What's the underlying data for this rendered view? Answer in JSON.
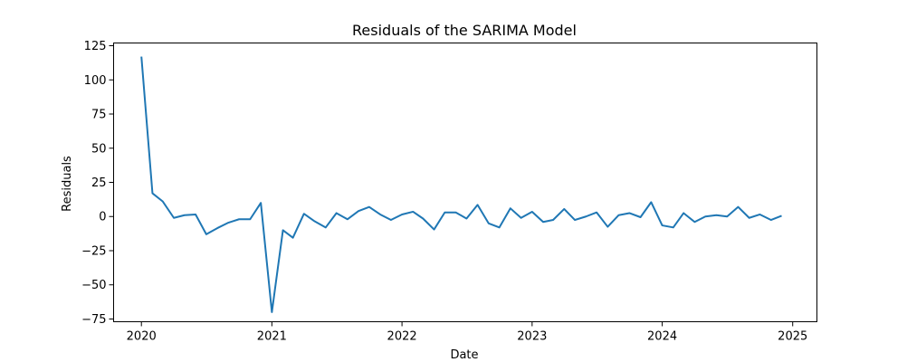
{
  "chart_data": {
    "type": "line",
    "title": "Residuals of the SARIMA Model",
    "xlabel": "Date",
    "ylabel": "Residuals",
    "xlim": [
      "2019-10-15",
      "2025-03-10"
    ],
    "ylim": [
      -77,
      127
    ],
    "x_ticks": [
      "2020",
      "2021",
      "2022",
      "2023",
      "2024",
      "2025"
    ],
    "x_tick_dates": [
      "2020-01-01",
      "2021-01-01",
      "2022-01-01",
      "2023-01-01",
      "2024-01-01",
      "2025-01-01"
    ],
    "y_ticks": [
      125,
      100,
      75,
      50,
      25,
      0,
      -25,
      -50,
      -75
    ],
    "y_tick_labels": [
      "125",
      "100",
      "75",
      "50",
      "25",
      "0",
      "−25",
      "−50",
      "−75"
    ],
    "grid": false,
    "line_color": "#1f77b4",
    "series": [
      {
        "x": [
          "2020-01-01",
          "2020-02-01",
          "2020-03-01",
          "2020-04-01",
          "2020-05-01",
          "2020-06-01",
          "2020-07-01",
          "2020-08-01",
          "2020-09-01",
          "2020-10-01",
          "2020-11-01",
          "2020-12-01",
          "2021-01-01",
          "2021-02-01",
          "2021-03-01",
          "2021-04-01",
          "2021-05-01",
          "2021-06-01",
          "2021-07-01",
          "2021-08-01",
          "2021-09-01",
          "2021-10-01",
          "2021-11-01",
          "2021-12-01",
          "2022-01-01",
          "2022-02-01",
          "2022-03-01",
          "2022-04-01",
          "2022-05-01",
          "2022-06-01",
          "2022-07-01",
          "2022-08-01",
          "2022-09-01",
          "2022-10-01",
          "2022-11-01",
          "2022-12-01",
          "2023-01-01",
          "2023-02-01",
          "2023-03-01",
          "2023-04-01",
          "2023-05-01",
          "2023-06-01",
          "2023-07-01",
          "2023-08-01",
          "2023-09-01",
          "2023-10-01",
          "2023-11-01",
          "2023-12-01",
          "2024-01-01",
          "2024-02-01",
          "2024-03-01",
          "2024-04-01",
          "2024-05-01",
          "2024-06-01",
          "2024-07-01",
          "2024-08-01",
          "2024-09-01",
          "2024-10-01",
          "2024-11-01",
          "2024-12-01"
        ],
        "y": [
          117,
          17,
          11,
          -1,
          1,
          1.5,
          -13,
          -8.5,
          -4.5,
          -2,
          -2,
          10,
          -70,
          -10,
          -15.5,
          2,
          -3.5,
          -8,
          2.5,
          -2,
          4,
          7,
          1.5,
          -2.5,
          1.5,
          3.5,
          -1.5,
          -9.5,
          3,
          3,
          -1.5,
          8.5,
          -5,
          -8,
          6,
          -1,
          3.5,
          -4,
          -2.5,
          5.5,
          -2.5,
          0,
          3,
          -7.5,
          1,
          2.5,
          -0.5,
          10.5,
          -6.5,
          -8,
          2.5,
          -4,
          0,
          1,
          0,
          7,
          -1,
          1.5,
          -2.5,
          0.5
        ]
      }
    ]
  }
}
